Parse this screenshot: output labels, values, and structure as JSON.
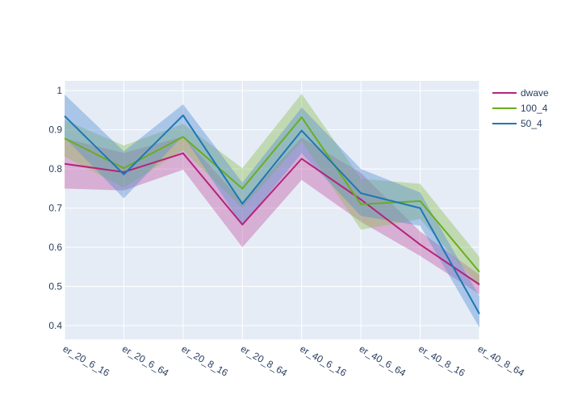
{
  "chart_data": {
    "type": "line",
    "title": "",
    "xlabel": "",
    "ylabel": "",
    "categories": [
      "er_20_6_16",
      "er_20_6_64",
      "er_20_8_16",
      "er_20_8_64",
      "er_40_6_16",
      "er_40_6_64",
      "er_40_8_16",
      "er_40_8_64"
    ],
    "ylim": [
      0.365,
      1.025
    ],
    "yticks": [
      0.4,
      0.5,
      0.6,
      0.7,
      0.8,
      0.9,
      1
    ],
    "ytick_labels": [
      "0.4",
      "0.5",
      "0.6",
      "0.7",
      "0.8",
      "0.9",
      "1"
    ],
    "grid": true,
    "legend_position": "top-right",
    "background_color": "#E5ECF6",
    "series": [
      {
        "name": "dwave",
        "color": "#B5247A",
        "band_color": "rgba(190,60,150,0.35)",
        "values": [
          0.813,
          0.792,
          0.84,
          0.658,
          0.826,
          0.722,
          0.607,
          0.505
        ],
        "upper": [
          0.878,
          0.841,
          0.883,
          0.717,
          0.88,
          0.79,
          0.64,
          0.53
        ],
        "lower": [
          0.75,
          0.745,
          0.798,
          0.6,
          0.772,
          0.665,
          0.578,
          0.48
        ]
      },
      {
        "name": "100_4",
        "color": "#6AAD1F",
        "band_color": "rgba(140,190,80,0.40)",
        "values": [
          0.878,
          0.802,
          0.882,
          0.75,
          0.932,
          0.71,
          0.718,
          0.537
        ],
        "upper": [
          0.925,
          0.86,
          0.915,
          0.802,
          0.992,
          0.775,
          0.762,
          0.575
        ],
        "lower": [
          0.832,
          0.752,
          0.848,
          0.7,
          0.87,
          0.645,
          0.672,
          0.5
        ]
      },
      {
        "name": "50_4",
        "color": "#1F77B4",
        "band_color": "rgba(80,140,210,0.40)",
        "values": [
          0.935,
          0.786,
          0.937,
          0.711,
          0.898,
          0.738,
          0.7,
          0.43
        ],
        "upper": [
          0.99,
          0.845,
          0.965,
          0.765,
          0.957,
          0.8,
          0.74,
          0.475
        ],
        "lower": [
          0.88,
          0.725,
          0.885,
          0.655,
          0.84,
          0.68,
          0.655,
          0.395
        ]
      }
    ]
  }
}
